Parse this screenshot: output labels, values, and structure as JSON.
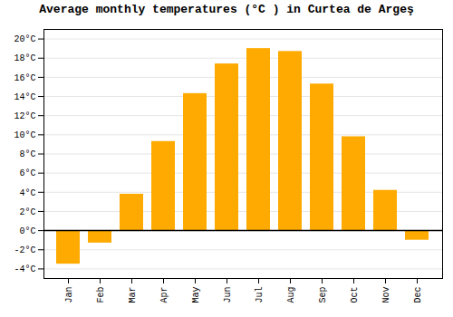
{
  "chart_data": {
    "type": "bar",
    "title": "Average monthly temperatures (°C ) in Curtea de Argeş",
    "categories": [
      "Jan",
      "Feb",
      "Mar",
      "Apr",
      "May",
      "Jun",
      "Jul",
      "Aug",
      "Sep",
      "Oct",
      "Nov",
      "Dec"
    ],
    "values": [
      -3.5,
      -1.3,
      3.8,
      9.3,
      14.3,
      17.4,
      19.0,
      18.7,
      15.3,
      9.8,
      4.2,
      -1.0
    ],
    "color": "#FFAA00",
    "ylim": [
      -5,
      21
    ],
    "yticks": [
      {
        "value": -4,
        "label": "-4°C"
      },
      {
        "value": -2,
        "label": "-2°C"
      },
      {
        "value": 0,
        "label": "0°C"
      },
      {
        "value": 2,
        "label": "2°C"
      },
      {
        "value": 4,
        "label": "4°C"
      },
      {
        "value": 6,
        "label": "6°C"
      },
      {
        "value": 8,
        "label": "8°C"
      },
      {
        "value": 10,
        "label": "10°C"
      },
      {
        "value": 12,
        "label": "12°C"
      },
      {
        "value": 14,
        "label": "14°C"
      },
      {
        "value": 16,
        "label": "16°C"
      },
      {
        "value": 18,
        "label": "18°C"
      },
      {
        "value": 20,
        "label": "20°C"
      }
    ],
    "grid": true
  }
}
